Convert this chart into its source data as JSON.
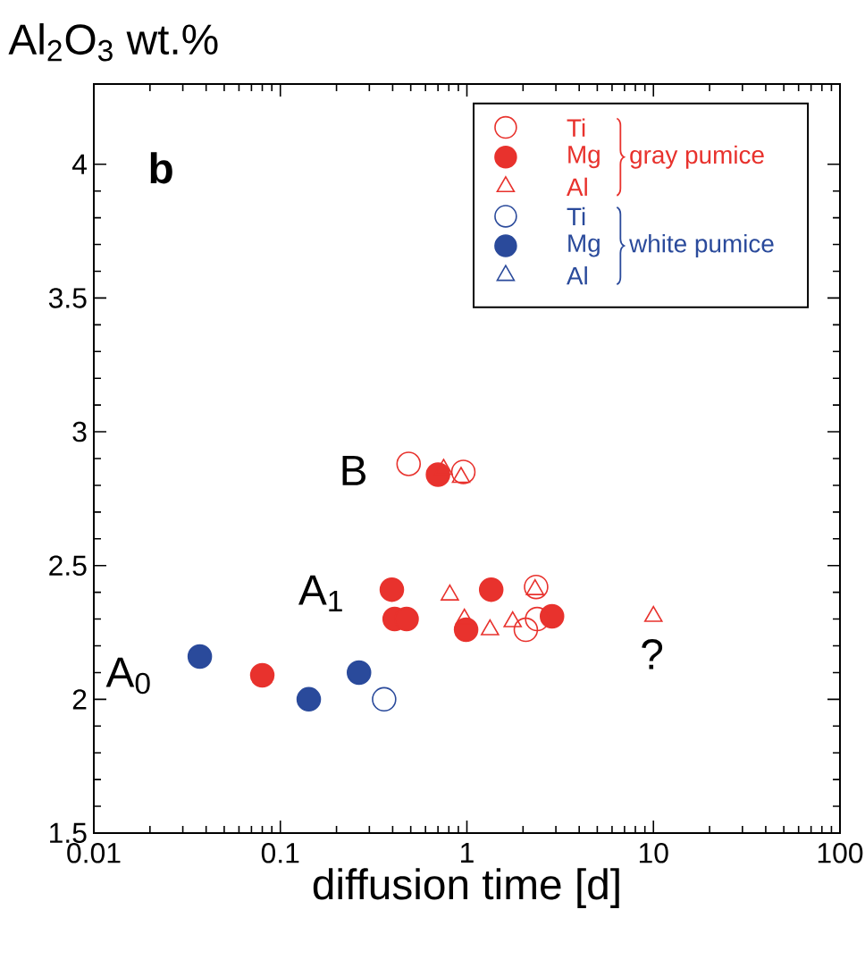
{
  "chart_data": {
    "type": "scatter",
    "ylabel": "Al$_{2}$O$_{3}$ wt.%",
    "xlabel": "diffusion time [d]",
    "log": "x",
    "xlim": [
      0.01,
      100
    ],
    "xticks": [
      0.01,
      0.1,
      1,
      10,
      100
    ],
    "ylim": [
      1.5,
      4.3
    ],
    "yticks": [
      1.5,
      2,
      2.5,
      3,
      3.5,
      4
    ],
    "grid": false,
    "legend": "top right",
    "annotations": [
      "b",
      "gray pumice",
      "white pumice",
      "B",
      "A$_{1}$",
      "A$_{0}$",
      "?"
    ],
    "series": [
      {
        "name": "Ti",
        "color": "#e8322d",
        "marker": "circle",
        "x": [
          0.487,
          0.957,
          2.35,
          2.38,
          2.07
        ],
        "values": [
          2.88,
          2.85,
          2.42,
          2.3,
          2.26
        ]
      },
      {
        "name": "Mg",
        "color": "#e8322d",
        "marker": "filled circle",
        "x": [
          0.7,
          0.396,
          0.41,
          0.475,
          1.35,
          0.99,
          2.86,
          0.08
        ],
        "values": [
          2.84,
          2.41,
          2.3,
          2.3,
          2.41,
          2.26,
          2.31,
          2.09
        ]
      },
      {
        "name": "Al",
        "color": "#e8322d",
        "marker": "triangle",
        "x": [
          0.75,
          0.93,
          0.81,
          0.97,
          1.33,
          1.76,
          2.32,
          10
        ],
        "values": [
          2.86,
          2.83,
          2.39,
          2.3,
          2.26,
          2.29,
          2.41,
          2.31
        ]
      },
      {
        "name": "Ti",
        "color": "#2a4a9b",
        "marker": "circle",
        "x": [
          0.36
        ],
        "values": [
          2.0
        ]
      },
      {
        "name": "Mg",
        "color": "#2a4a9b",
        "marker": "filled circle",
        "x": [
          0.037,
          0.142,
          0.264
        ],
        "values": [
          2.16,
          2.0,
          2.1
        ]
      },
      {
        "name": "Al",
        "color": "#2a4a9b",
        "marker": "triangle"
      }
    ]
  }
}
